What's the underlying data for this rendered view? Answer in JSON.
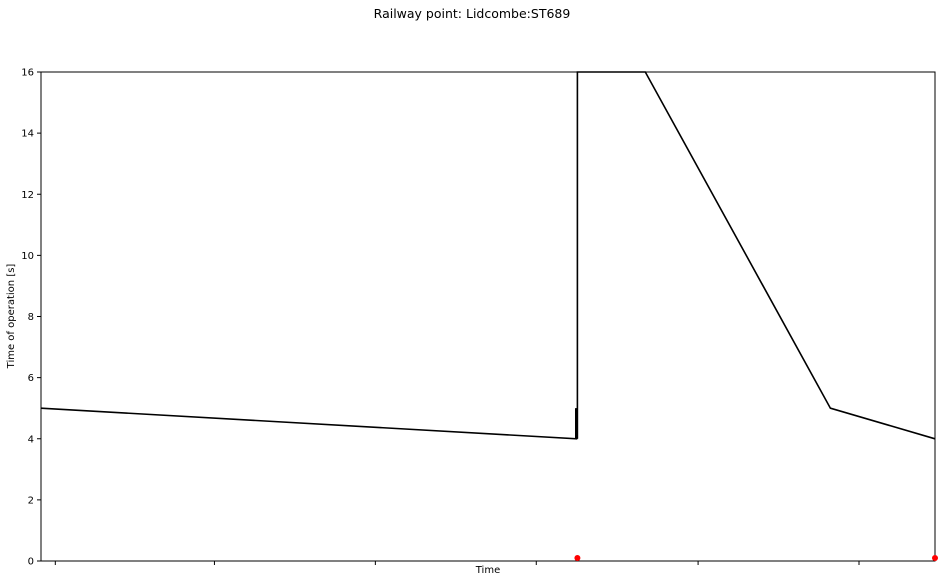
{
  "chart_data": {
    "type": "line",
    "title": "Railway point: Lidcombe:ST689",
    "xlabel": "Time",
    "ylabel": "Time of operation [s]",
    "xlim": [
      0,
      100
    ],
    "ylim": [
      0,
      16
    ],
    "yticks": [
      0,
      2,
      4,
      6,
      8,
      10,
      12,
      14,
      16
    ],
    "xticks": [
      1.6,
      19.4,
      37.4,
      55.4,
      73.5,
      91.5
    ],
    "grid": false,
    "colors": {
      "line": "#000000",
      "marker": "#ff0000",
      "axes": "#000000"
    },
    "series": [
      {
        "values_x": [
          0,
          59.9,
          59.9,
          60.0,
          60.0,
          67.6,
          88.3,
          100
        ],
        "values_y": [
          5,
          4,
          5,
          4,
          16,
          16,
          5,
          4
        ]
      }
    ],
    "markers": {
      "x": [
        60.0,
        100
      ],
      "y": [
        0.1,
        0.1
      ]
    }
  }
}
